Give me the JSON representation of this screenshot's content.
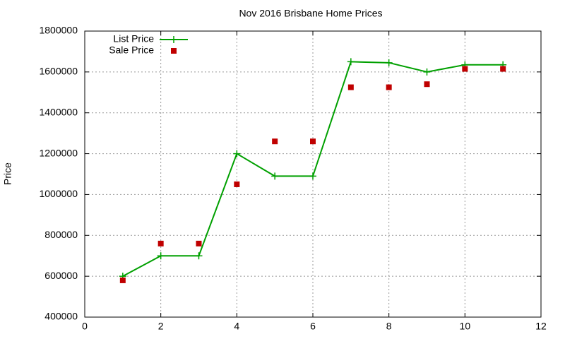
{
  "chart_data": {
    "type": "line",
    "title": "Nov 2016 Brisbane Home Prices",
    "y_label": "Price",
    "x": [
      1,
      2,
      3,
      4,
      5,
      6,
      7,
      8,
      9,
      10,
      11
    ],
    "series": [
      {
        "name": "List Price",
        "color": "#00a000",
        "mode": "lines+markers",
        "values": [
          600000,
          700000,
          700000,
          1200000,
          1090000,
          1090000,
          1650000,
          1645000,
          1600000,
          1635000,
          1635000
        ]
      },
      {
        "name": "Sale Price",
        "color": "#c00000",
        "mode": "markers",
        "values": [
          580000,
          760000,
          760000,
          1050000,
          1260000,
          1260000,
          1525000,
          1525000,
          1540000,
          1615000,
          1615000
        ]
      }
    ],
    "xlim": [
      0,
      12
    ],
    "xticks": [
      0,
      2,
      4,
      6,
      8,
      10,
      12
    ],
    "ylim": [
      400000,
      1800000
    ],
    "yticks": [
      400000,
      600000,
      800000,
      1000000,
      1200000,
      1400000,
      1600000,
      1800000
    ],
    "grid": true,
    "legend": "top-left"
  }
}
